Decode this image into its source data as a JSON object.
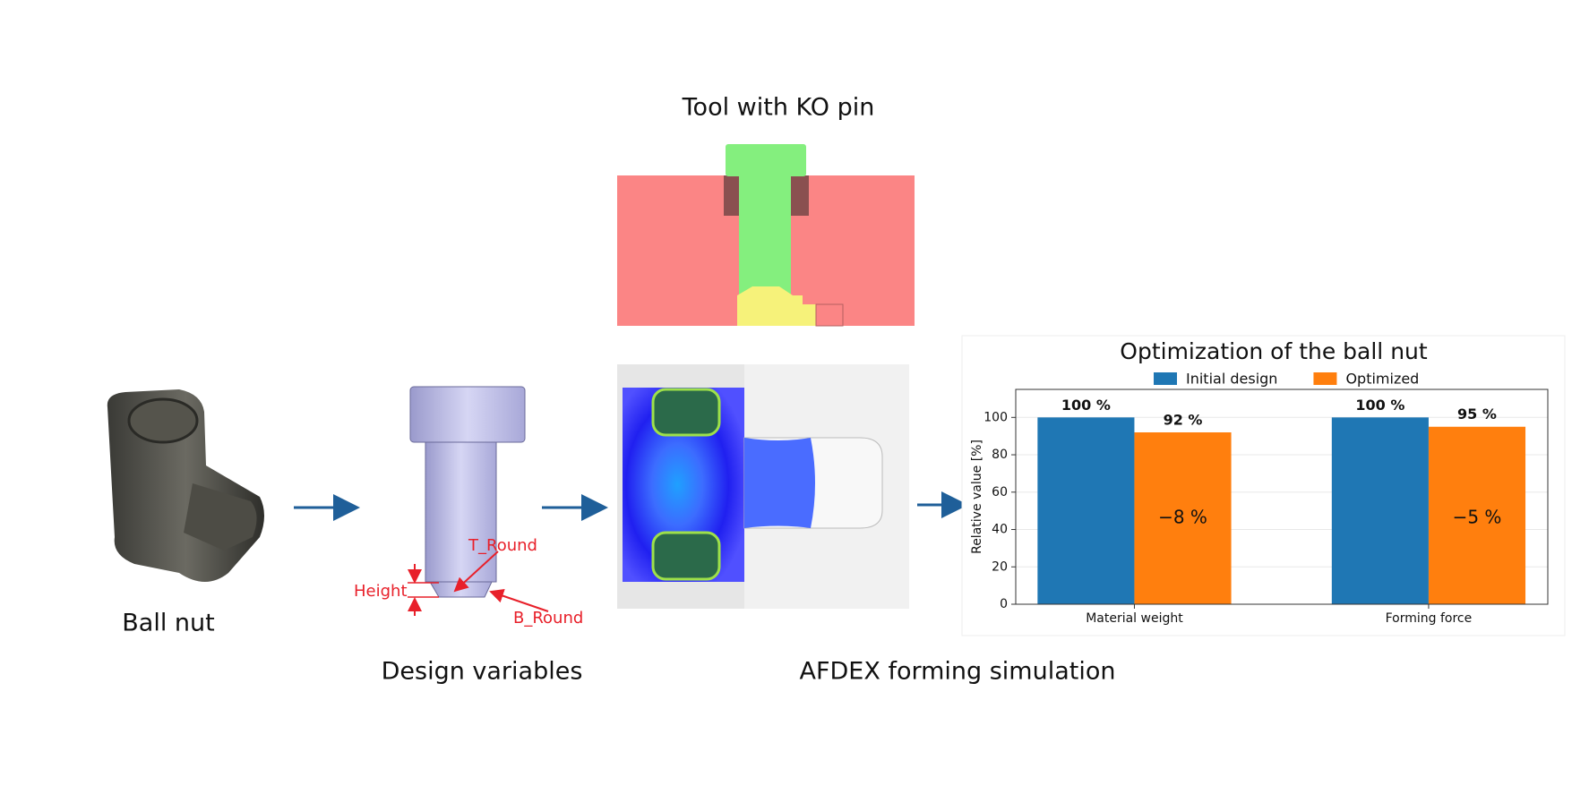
{
  "labels": {
    "tool_title": "Tool with KO pin",
    "ball_nut": "Ball nut",
    "design_variables": "Design variables",
    "simulation": "AFDEX forming simulation",
    "t_round": "T_Round",
    "height": "Height",
    "b_round": "B_Round"
  },
  "chart_data": {
    "type": "bar",
    "title": "Optimization of the ball nut",
    "ylabel": "Relative value [%]",
    "categories": [
      "Material weight",
      "Forming force"
    ],
    "series": [
      {
        "name": "Initial design",
        "color": "#1f77b4",
        "values": [
          100,
          100
        ],
        "value_labels": [
          "100 %",
          "100 %"
        ]
      },
      {
        "name": "Optimized",
        "color": "#ff7f0e",
        "values": [
          92,
          95
        ],
        "value_labels": [
          "92 %",
          "95 %"
        ]
      }
    ],
    "annotations": [
      "−8 %",
      "−5 %"
    ],
    "ylim": [
      0,
      115
    ],
    "yticks": [
      0,
      20,
      40,
      60,
      80,
      100
    ],
    "grid": true
  }
}
